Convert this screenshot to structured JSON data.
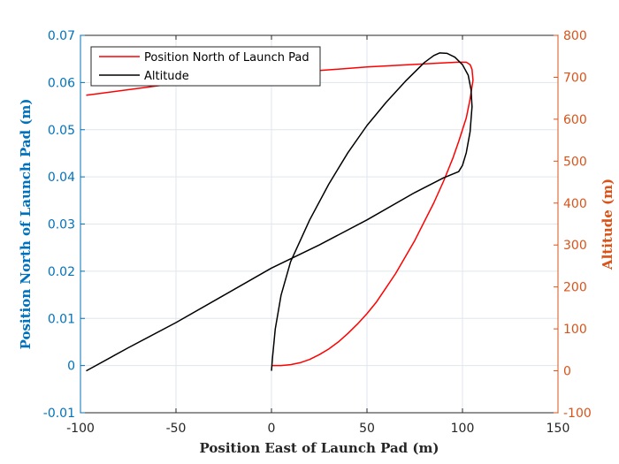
{
  "chart_data": {
    "type": "line",
    "xlabel": "Position East of Launch Pad (m)",
    "ylabel_left": "Position North of Launch Pad (m)",
    "ylabel_right": "Altitude (m)",
    "xlim": [
      -100,
      150
    ],
    "ylim_left": [
      -0.01,
      0.07
    ],
    "ylim_right": [
      -100,
      800
    ],
    "x_ticks": [
      "-100",
      "-50",
      "0",
      "50",
      "100",
      "150"
    ],
    "y_left_ticks": [
      "-0.01",
      "0",
      "0.01",
      "0.02",
      "0.03",
      "0.04",
      "0.05",
      "0.06",
      "0.07"
    ],
    "y_right_ticks": [
      "-100",
      "0",
      "100",
      "200",
      "300",
      "400",
      "500",
      "600",
      "700",
      "800"
    ],
    "grid": true,
    "legend_position": "top-left",
    "colors": {
      "left_axis": "#0072BD",
      "right_axis": "#D95319",
      "north": "#ff0000",
      "altitude": "#000000"
    },
    "series": [
      {
        "name": "Position North of Launch Pad",
        "axis": "left",
        "color": "#ff0000",
        "x": [
          -97,
          -50,
          0,
          50,
          97,
          102,
          104,
          105,
          105.5,
          104,
          102,
          98,
          95,
          90,
          85,
          80,
          75,
          70,
          65,
          60,
          55,
          50,
          45,
          40,
          35,
          30,
          25,
          20,
          15,
          10,
          5,
          2,
          0
        ],
        "y": [
          0.0573,
          0.0598,
          0.0618,
          0.0633,
          0.0643,
          0.0643,
          0.0638,
          0.0628,
          0.0605,
          0.0565,
          0.0525,
          0.0475,
          0.044,
          0.039,
          0.0345,
          0.0305,
          0.0265,
          0.023,
          0.0195,
          0.0165,
          0.0135,
          0.011,
          0.0088,
          0.0068,
          0.005,
          0.0035,
          0.0023,
          0.0013,
          0.0006,
          0.0002,
          0.0,
          0.0,
          0.0
        ]
      },
      {
        "name": "Altitude",
        "axis": "right",
        "color": "#000000",
        "x": [
          0,
          0.5,
          2,
          5,
          10,
          20,
          30,
          40,
          50,
          60,
          70,
          80,
          85,
          88,
          92,
          96,
          100,
          103,
          104.5,
          105,
          104,
          102,
          100,
          98,
          90,
          75,
          50,
          25,
          0,
          -25,
          -50,
          -75,
          -97
        ],
        "y": [
          0,
          30,
          100,
          180,
          260,
          360,
          445,
          520,
          585,
          640,
          690,
          735,
          752,
          758,
          757,
          748,
          730,
          705,
          670,
          630,
          570,
          520,
          490,
          475,
          460,
          425,
          360,
          300,
          245,
          180,
          115,
          55,
          0
        ]
      }
    ]
  }
}
